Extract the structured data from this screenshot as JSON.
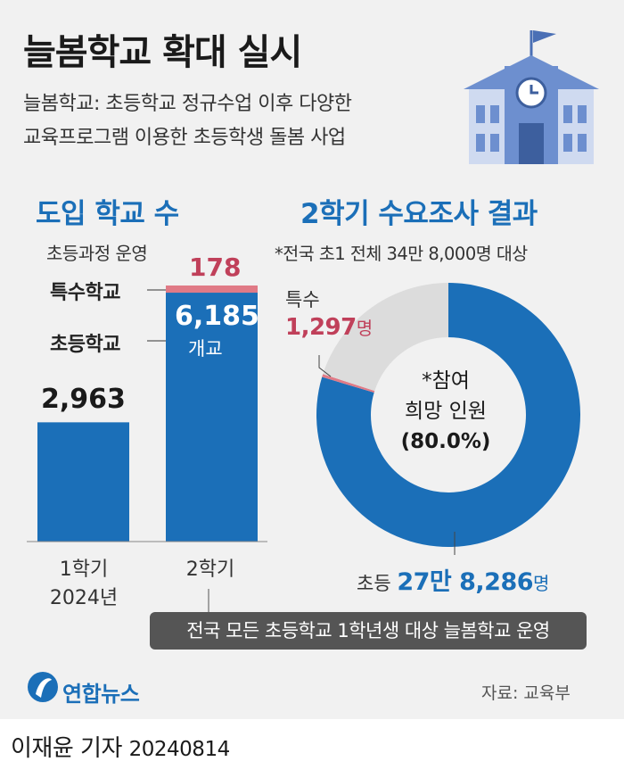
{
  "header": {
    "title": "늘봄학교 확대 실시",
    "subtitle_line1": "늘봄학교: 초등학교 정규수업 이후 다양한",
    "subtitle_line2": "교육프로그램 이용한 초등학생 돌봄 사업"
  },
  "icons": [
    "school-building-icon",
    "flag-icon",
    "clock-icon",
    "yonhap-logo-icon"
  ],
  "colors": {
    "accent_blue": "#1b6fb8",
    "special_pink": "#e07a86",
    "special_text": "#c0405a",
    "donut_rest": "#dcdcdc",
    "callout_bg": "#555555"
  },
  "chart_data": [
    {
      "type": "bar",
      "title": "도입 학교 수",
      "categories": [
        "1학기 2024년",
        "2학기"
      ],
      "category_line1": [
        "1학기",
        "2학기"
      ],
      "category_line2": [
        "2024년",
        ""
      ],
      "series": [
        {
          "name": "초등학교",
          "values": [
            2963,
            6185
          ]
        },
        {
          "name": "특수학교",
          "values": [
            0,
            178
          ]
        }
      ],
      "stacked": true,
      "series_labels": {
        "elementary": "초등학교",
        "special": "특수학교",
        "special_note": "초등과정 운영"
      },
      "value_labels": {
        "first": "2,963",
        "second_elementary": "6,185",
        "second_unit": "개교",
        "second_special": "178"
      },
      "ylim": [
        0,
        6500
      ]
    },
    {
      "type": "pie",
      "donut": true,
      "title": "2학기 수요조사 결과",
      "note": "*전국 초1 전체 34만 8,000명 대상",
      "categories": [
        "초등",
        "특수"
      ],
      "values": [
        278286,
        1297
      ],
      "center_label": {
        "line1": "*참여",
        "line2": "희망 인원",
        "line3": "(80.0%)"
      },
      "participation_share_percent": 80.0,
      "labels": {
        "elementary_name": "초등",
        "elementary_value": "27만 8,286",
        "elementary_unit": "명",
        "special_name": "특수",
        "special_value": "1,297",
        "special_unit": "명"
      }
    }
  ],
  "callout": "전국 모든 초등학교 1학년생 대상 늘봄학교 운영",
  "footer": {
    "logo_text": "연합뉴스",
    "source": "자료: 교육부",
    "byline": "이재윤 기자",
    "date": "20240814"
  }
}
